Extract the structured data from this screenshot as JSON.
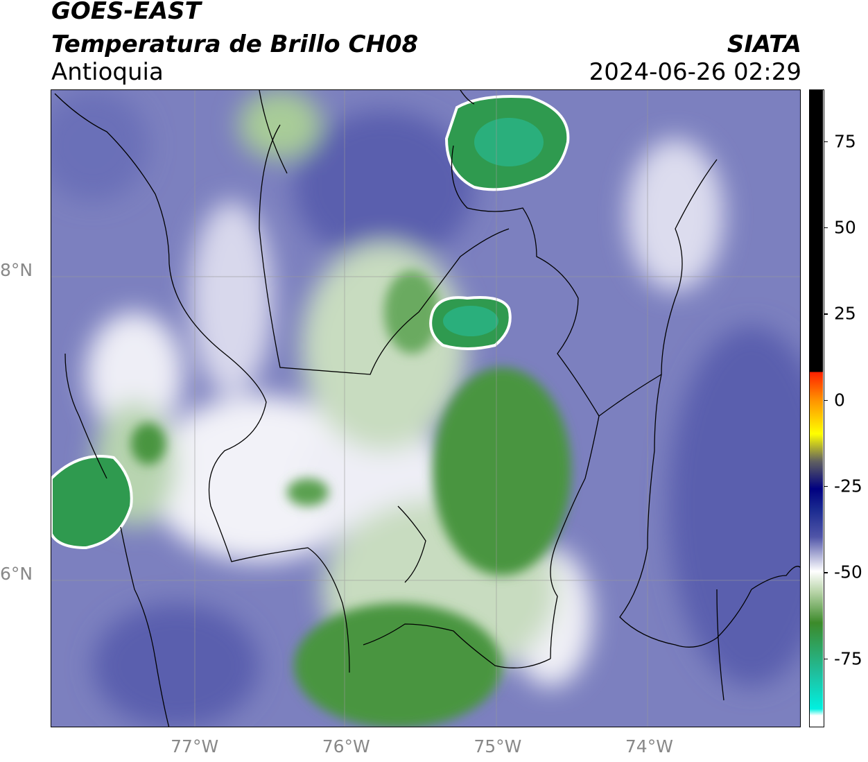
{
  "header": {
    "satellite": "GOES-EAST",
    "product": "Temperatura de Brillo CH08",
    "brand": "SIATA",
    "region": "Antioquia",
    "datetime": "2024-06-26 02:29"
  },
  "map": {
    "lon_range": [
      -77.95,
      -73.0
    ],
    "lat_range": [
      5.0,
      9.2
    ],
    "lat_ticks": [
      {
        "value": 8,
        "label": "8°N"
      },
      {
        "value": 6,
        "label": "6°N"
      }
    ],
    "lon_ticks": [
      {
        "value": -77,
        "label": "77°W"
      },
      {
        "value": -76,
        "label": "76°W"
      },
      {
        "value": -75,
        "label": "75°W"
      },
      {
        "value": -74,
        "label": "74°W"
      }
    ],
    "gridlines": true
  },
  "colorbar": {
    "range": [
      -95,
      90
    ],
    "ticks": [
      {
        "value": 75,
        "label": "75"
      },
      {
        "value": 50,
        "label": "50"
      },
      {
        "value": 25,
        "label": "25"
      },
      {
        "value": 0,
        "label": "0"
      },
      {
        "value": -25,
        "label": "-25"
      },
      {
        "value": -50,
        "label": "-50"
      },
      {
        "value": -75,
        "label": "-75"
      }
    ],
    "colors": {
      "black_above": "#000000",
      "red": "#ff2000",
      "orange": "#ff9000",
      "yellow": "#ffff00",
      "navy": "#000080",
      "blue": "#5055a8",
      "white": "#ffffff",
      "green": "#3c8a2a",
      "teal": "#1fc0a0",
      "cyan": "#00f0e0"
    }
  }
}
